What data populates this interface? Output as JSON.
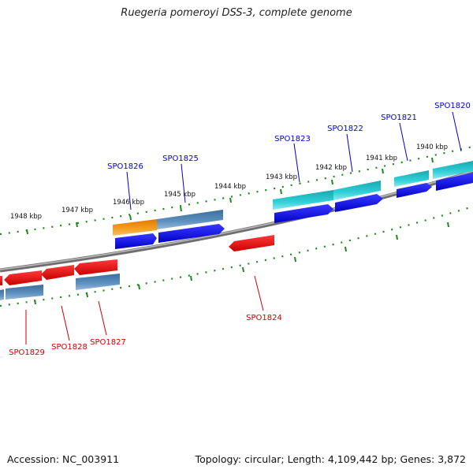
{
  "header": {
    "title": "Ruegeria pomeroyi DSS-3, complete genome"
  },
  "footer": {
    "accession": "Accession: NC_003911",
    "summary": "Topology: circular; Length: 4,109,442 bp; Genes: 3,872"
  },
  "ruler": {
    "unit": "kbp",
    "labels": [
      "1948 kbp",
      "1947 kbp",
      "1946 kbp",
      "1945 kbp",
      "1944 kbp",
      "1943 kbp",
      "1942 kbp",
      "1941 kbp",
      "1940 kbp"
    ]
  },
  "genes_forward": [
    "SPO1826",
    "SPO1825",
    "SPO1823",
    "SPO1822",
    "SPO1821",
    "SPO1820"
  ],
  "genes_reverse": [
    "SPO1829",
    "SPO1828",
    "SPO1827",
    "SPO1824"
  ],
  "colors": {
    "forward_label": "#0000cc",
    "reverse_label": "#cc0000",
    "cds_blue": "#0000ee",
    "cds_red": "#ee0000",
    "gene_steelblue": "#4682b4",
    "gene_cyan": "#20c0c8",
    "gene_orange": "#f09010",
    "ruler_green": "#1a8a1a",
    "backbone_grey": "#8a8a8a"
  }
}
